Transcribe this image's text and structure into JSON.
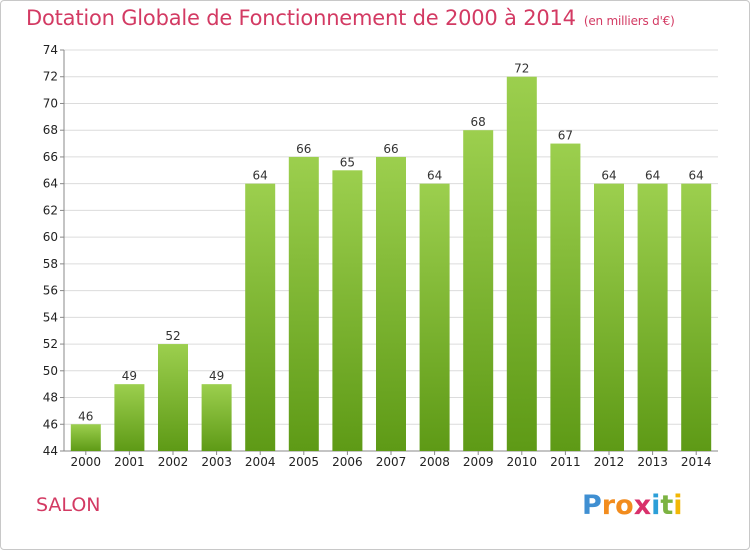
{
  "title": "Dotation Globale de Fonctionnement de 2000 à 2014",
  "unit": "(en milliers d'€)",
  "place": "SALON",
  "brand": {
    "letters": [
      "P",
      "r",
      "o",
      "x",
      "i",
      "t",
      "i"
    ],
    "colors": [
      "#3f8fd2",
      "#f28c1e",
      "#f28c1e",
      "#d9316b",
      "#2c9fd8",
      "#7cb342",
      "#f2b705"
    ]
  },
  "colors": {
    "bar_top": "#9ccf4e",
    "bar_bottom": "#5e9a16",
    "title": "#d33a63",
    "grid": "#dcdcdc"
  },
  "chart_data": {
    "type": "bar",
    "categories": [
      "2000",
      "2001",
      "2002",
      "2003",
      "2004",
      "2005",
      "2006",
      "2007",
      "2008",
      "2009",
      "2010",
      "2011",
      "2012",
      "2013",
      "2014"
    ],
    "values": [
      46,
      49,
      52,
      49,
      64,
      66,
      65,
      66,
      64,
      68,
      72,
      67,
      64,
      64,
      64
    ],
    "ylim": [
      44,
      74
    ],
    "yticks": [
      44,
      46,
      48,
      50,
      52,
      54,
      56,
      58,
      60,
      62,
      64,
      66,
      68,
      70,
      72,
      74
    ],
    "grid": true
  }
}
